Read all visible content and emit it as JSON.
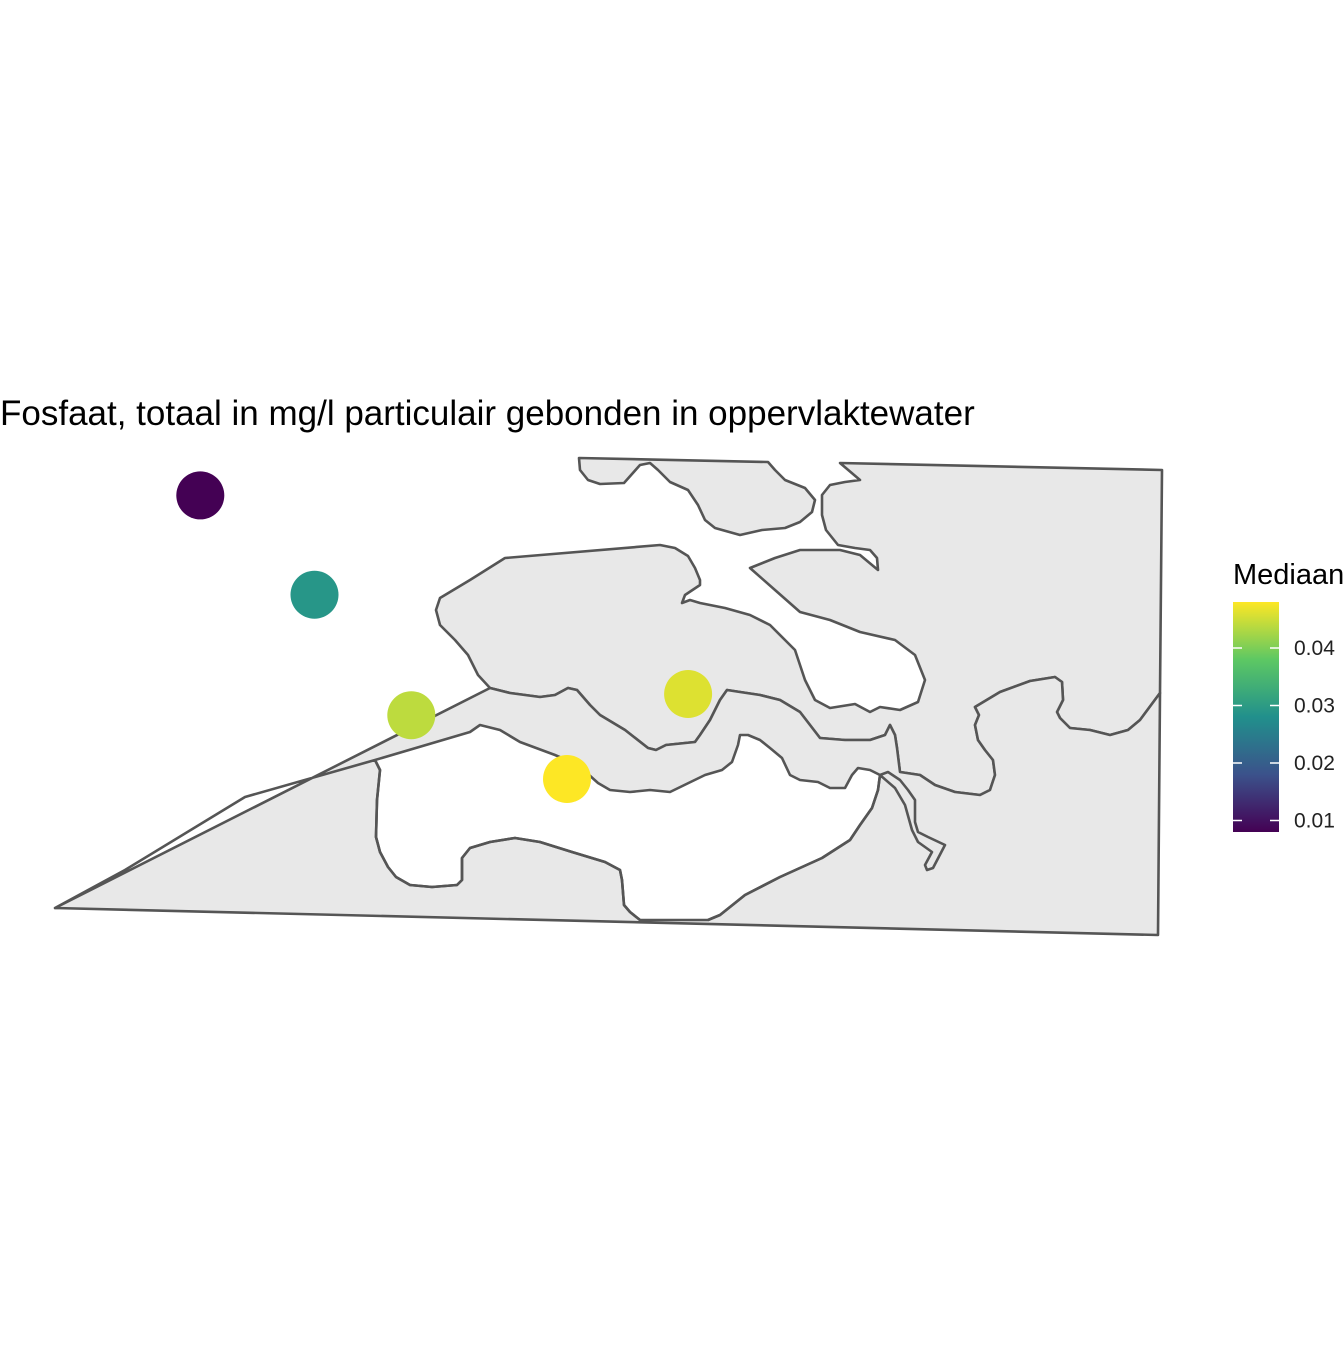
{
  "title": "Fosfaat, totaal in mg/l particulair gebonden in oppervlaktewater",
  "legend": {
    "title": "Mediaan",
    "min": 0.008,
    "max": 0.048,
    "ticks": [
      {
        "value": 0.01,
        "label": "0.01"
      },
      {
        "value": 0.02,
        "label": "0.02"
      },
      {
        "value": 0.03,
        "label": "0.03"
      },
      {
        "value": 0.04,
        "label": "0.04"
      }
    ],
    "palette": [
      "#440154",
      "#3b528b",
      "#21908c",
      "#5dc863",
      "#fde725"
    ]
  },
  "stations": [
    {
      "lon": 3.12,
      "lat": 51.75,
      "value": 0.008
    },
    {
      "lon": 3.45,
      "lat": 51.61,
      "value": 0.029
    },
    {
      "lon": 3.73,
      "lat": 51.44,
      "value": 0.044
    },
    {
      "lon": 4.18,
      "lat": 51.35,
      "value": 0.048
    },
    {
      "lon": 4.53,
      "lat": 51.47,
      "value": 0.046
    }
  ],
  "map_extent": {
    "lon_min": 2.7,
    "lon_max": 5.9,
    "lat_min": 51.13,
    "lat_max": 51.8
  }
}
